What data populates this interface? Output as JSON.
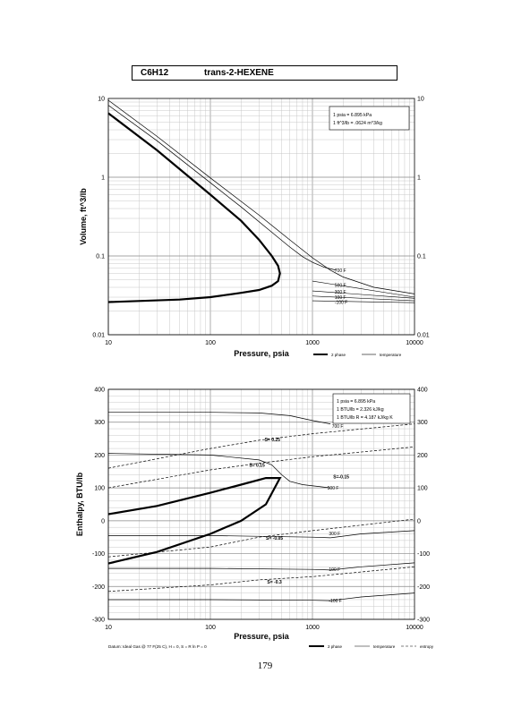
{
  "title": {
    "formula": "C6H12",
    "name": "trans-2-HEXENE"
  },
  "page_number": "179",
  "chart_data": [
    {
      "type": "line",
      "xlabel": "Pressure, psia",
      "ylabel": "Volume, ft^3/lb",
      "x_scale": "log",
      "y_scale": "log",
      "xlim": [
        10,
        10000
      ],
      "ylim": [
        0.01,
        10
      ],
      "x_ticks": [
        "10",
        "100",
        "1000",
        "10000"
      ],
      "y_ticks": [
        "0.01",
        "0.1",
        "1",
        "10"
      ],
      "y_ticks_right": [
        "0.01",
        "0.1",
        "1",
        "10"
      ],
      "grid": true,
      "note_lines": [
        "1 psia = 6.895 kPa",
        "1 ft^3/lb = .0624 m^3/kg"
      ],
      "legend": [
        "2 phase",
        "temperature"
      ],
      "series": [
        {
          "kind": "2 phase",
          "x": [
            10,
            30,
            100,
            200,
            300,
            400,
            460,
            480,
            460,
            400,
            300,
            200,
            100,
            50,
            10
          ],
          "y": [
            6.5,
            2.2,
            0.6,
            0.28,
            0.16,
            0.1,
            0.075,
            0.06,
            0.048,
            0.042,
            0.037,
            0.034,
            0.03,
            0.028,
            0.026
          ]
        },
        {
          "kind": "temperature",
          "x": [
            10,
            30,
            100,
            200,
            400,
            600,
            800,
            1000,
            1300,
            1700
          ],
          "y": [
            8.2,
            2.9,
            0.85,
            0.42,
            0.2,
            0.13,
            0.098,
            0.083,
            0.072,
            0.066
          ]
        },
        {
          "kind": "temperature",
          "x": [
            10,
            30,
            100,
            300,
            600,
            1000,
            1500,
            2000,
            4000,
            10000
          ],
          "y": [
            9.5,
            3.3,
            0.98,
            0.33,
            0.16,
            0.095,
            0.066,
            0.054,
            0.04,
            0.033
          ]
        }
      ],
      "isotherm_labels": [
        {
          "text": "700 F",
          "p": 1650,
          "v": 0.066
        },
        {
          "text": "500 F",
          "p": 1650,
          "v": 0.043
        },
        {
          "text": "300 F",
          "p": 1650,
          "v": 0.035
        },
        {
          "text": "100 F",
          "p": 1650,
          "v": 0.03
        },
        {
          "text": "-100 F",
          "p": 1650,
          "v": 0.026
        }
      ],
      "isotherm_lines": [
        {
          "v0": 0.048,
          "v1": 0.03
        },
        {
          "v0": 0.036,
          "v1": 0.029
        },
        {
          "v0": 0.031,
          "v1": 0.027
        },
        {
          "v0": 0.027,
          "v1": 0.0255
        }
      ]
    },
    {
      "type": "line",
      "xlabel": "Pressure, psia",
      "ylabel": "Enthalpy, BTU/lb",
      "x_scale": "log",
      "xlim": [
        10,
        10000
      ],
      "ylim": [
        -300,
        400
      ],
      "x_ticks": [
        "10",
        "100",
        "1000",
        "10000"
      ],
      "y_ticks": [
        "-300",
        "-200",
        "-100",
        "0",
        "100",
        "200",
        "300",
        "400"
      ],
      "grid": true,
      "note_lines": [
        "1 psia = 6.895 kPa",
        "1 BTU/lb = 2.326 kJ/kg",
        "1 BTU/lb R = 4.187 kJ/kg K"
      ],
      "footnote": "Datum: Ideal Gas @ 77 F(25 C), H = 0, S = R ln P = 0",
      "legend": [
        "2 phase",
        "temperature",
        "entropy"
      ],
      "series": [
        {
          "kind": "2 phase",
          "x": [
            10,
            30,
            100,
            200,
            350,
            480,
            350,
            200,
            100,
            30,
            10
          ],
          "y": [
            20,
            45,
            85,
            110,
            130,
            130,
            50,
            0,
            -40,
            -95,
            -130
          ]
        },
        {
          "kind": "temperature",
          "x": [
            10,
            100,
            300,
            600,
            1000,
            1500
          ],
          "y": [
            330,
            330,
            328,
            320,
            305,
            295
          ]
        },
        {
          "kind": "temperature",
          "x": [
            10,
            100,
            300,
            400,
            500,
            600,
            800,
            1500
          ],
          "y": [
            205,
            200,
            185,
            170,
            140,
            120,
            110,
            100
          ]
        },
        {
          "kind": "temperature",
          "x": [
            10,
            100,
            1000,
            1500
          ],
          "y": [
            -45,
            -45,
            -50,
            -52
          ]
        },
        {
          "kind": "temperature",
          "x": [
            10,
            100,
            1000,
            1500
          ],
          "y": [
            -145,
            -145,
            -148,
            -150
          ]
        },
        {
          "kind": "temperature",
          "x": [
            10,
            100,
            1000,
            1500
          ],
          "y": [
            -240,
            -240,
            -242,
            -243
          ]
        },
        {
          "kind": "temperature",
          "x": [
            1500,
            3000,
            10000
          ],
          "y": [
            -52,
            -40,
            -30
          ]
        },
        {
          "kind": "temperature",
          "x": [
            1500,
            3000,
            10000
          ],
          "y": [
            -150,
            -140,
            -128
          ]
        },
        {
          "kind": "temperature",
          "x": [
            1500,
            3000,
            10000
          ],
          "y": [
            -243,
            -232,
            -220
          ]
        },
        {
          "kind": "entropy",
          "x": [
            10,
            100,
            300,
            1000,
            10000
          ],
          "y": [
            160,
            220,
            245,
            265,
            295
          ]
        },
        {
          "kind": "entropy",
          "x": [
            10,
            100,
            300,
            1000,
            10000
          ],
          "y": [
            100,
            155,
            175,
            195,
            225
          ]
        },
        {
          "kind": "entropy",
          "x": [
            10,
            100,
            300,
            1000,
            10000
          ],
          "y": [
            -110,
            -80,
            -50,
            -30,
            5
          ]
        },
        {
          "kind": "entropy",
          "x": [
            10,
            100,
            300,
            1000,
            10000
          ],
          "y": [
            -215,
            -195,
            -180,
            -170,
            -140
          ]
        }
      ],
      "isotherm_labels": [
        {
          "text": "700 F",
          "p": 1550,
          "h": 288
        },
        {
          "text": "500 F",
          "p": 1400,
          "h": 100
        },
        {
          "text": "300 F",
          "p": 1450,
          "h": -38
        },
        {
          "text": "100 F",
          "p": 1450,
          "h": -148
        },
        {
          "text": "-100 F",
          "p": 1450,
          "h": -243
        }
      ],
      "entropy_labels": [
        {
          "text": "S= 0.25",
          "p": 340,
          "h": 247
        },
        {
          "text": "S= 0.15",
          "p": 240,
          "h": 170
        },
        {
          "text": "S=-0.15",
          "p": 1600,
          "h": 135
        },
        {
          "text": "S= -0.05",
          "p": 350,
          "h": -52
        },
        {
          "text": "S= -0.3",
          "p": 360,
          "h": -185
        }
      ]
    }
  ]
}
